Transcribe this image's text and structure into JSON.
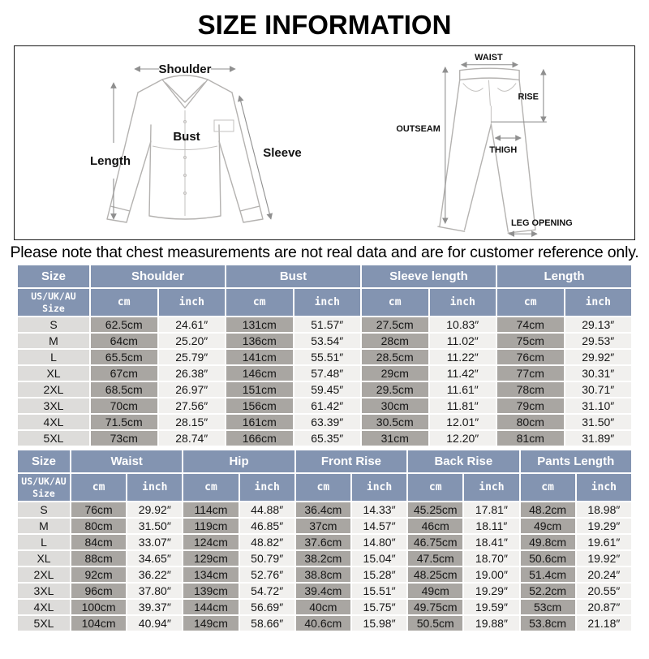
{
  "page": {
    "title": "SIZE INFORMATION",
    "note": "Please note that chest measurements are not real data and are for customer reference only."
  },
  "colors": {
    "header_bg": "#8394B1",
    "header_text": "#FFFFFF",
    "cm_cell_bg": "#A9A6A2",
    "inch_cell_bg": "#F1F0EE",
    "size_cell_bg": "#DDDCDA",
    "diagram_line": "#B4B2B0"
  },
  "diagrams": {
    "shirt": {
      "labels": {
        "shoulder": "Shoulder",
        "length": "Length",
        "bust": "Bust",
        "sleeve": "Sleeve"
      }
    },
    "pants": {
      "labels": {
        "waist": "WAIST",
        "rise": "RISE",
        "outseam": "OUTSEAM",
        "thigh": "THIGH",
        "leg_opening": "LEG OPENING"
      }
    }
  },
  "tables": [
    {
      "id": "tops",
      "size_header": "Size",
      "sub_size_header": "US/UK/AU\nSize",
      "groups": [
        "Shoulder",
        "Bust",
        "Sleeve length",
        "Length"
      ],
      "unit_headers": [
        "cm",
        "inch"
      ],
      "rows": [
        {
          "size": "S",
          "values": [
            "62.5cm",
            "24.61″",
            "131cm",
            "51.57″",
            "27.5cm",
            "10.83″",
            "74cm",
            "29.13″"
          ]
        },
        {
          "size": "M",
          "values": [
            "64cm",
            "25.20″",
            "136cm",
            "53.54″",
            "28cm",
            "11.02″",
            "75cm",
            "29.53″"
          ]
        },
        {
          "size": "L",
          "values": [
            "65.5cm",
            "25.79″",
            "141cm",
            "55.51″",
            "28.5cm",
            "11.22″",
            "76cm",
            "29.92″"
          ]
        },
        {
          "size": "XL",
          "values": [
            "67cm",
            "26.38″",
            "146cm",
            "57.48″",
            "29cm",
            "11.42″",
            "77cm",
            "30.31″"
          ]
        },
        {
          "size": "2XL",
          "values": [
            "68.5cm",
            "26.97″",
            "151cm",
            "59.45″",
            "29.5cm",
            "11.61″",
            "78cm",
            "30.71″"
          ]
        },
        {
          "size": "3XL",
          "values": [
            "70cm",
            "27.56″",
            "156cm",
            "61.42″",
            "30cm",
            "11.81″",
            "79cm",
            "31.10″"
          ]
        },
        {
          "size": "4XL",
          "values": [
            "71.5cm",
            "28.15″",
            "161cm",
            "63.39″",
            "30.5cm",
            "12.01″",
            "80cm",
            "31.50″"
          ]
        },
        {
          "size": "5XL",
          "values": [
            "73cm",
            "28.74″",
            "166cm",
            "65.35″",
            "31cm",
            "12.20″",
            "81cm",
            "31.89″"
          ]
        }
      ]
    },
    {
      "id": "pants",
      "size_header": "Size",
      "sub_size_header": "US/UK/AU\nSize",
      "groups": [
        "Waist",
        "Hip",
        "Front Rise",
        "Back Rise",
        "Pants Length"
      ],
      "unit_headers": [
        "cm",
        "inch"
      ],
      "rows": [
        {
          "size": "S",
          "values": [
            "76cm",
            "29.92″",
            "114cm",
            "44.88″",
            "36.4cm",
            "14.33″",
            "45.25cm",
            "17.81″",
            "48.2cm",
            "18.98″"
          ]
        },
        {
          "size": "M",
          "values": [
            "80cm",
            "31.50″",
            "119cm",
            "46.85″",
            "37cm",
            "14.57″",
            "46cm",
            "18.11″",
            "49cm",
            "19.29″"
          ]
        },
        {
          "size": "L",
          "values": [
            "84cm",
            "33.07″",
            "124cm",
            "48.82″",
            "37.6cm",
            "14.80″",
            "46.75cm",
            "18.41″",
            "49.8cm",
            "19.61″"
          ]
        },
        {
          "size": "XL",
          "values": [
            "88cm",
            "34.65″",
            "129cm",
            "50.79″",
            "38.2cm",
            "15.04″",
            "47.5cm",
            "18.70″",
            "50.6cm",
            "19.92″"
          ]
        },
        {
          "size": "2XL",
          "values": [
            "92cm",
            "36.22″",
            "134cm",
            "52.76″",
            "38.8cm",
            "15.28″",
            "48.25cm",
            "19.00″",
            "51.4cm",
            "20.24″"
          ]
        },
        {
          "size": "3XL",
          "values": [
            "96cm",
            "37.80″",
            "139cm",
            "54.72″",
            "39.4cm",
            "15.51″",
            "49cm",
            "19.29″",
            "52.2cm",
            "20.55″"
          ]
        },
        {
          "size": "4XL",
          "values": [
            "100cm",
            "39.37″",
            "144cm",
            "56.69″",
            "40cm",
            "15.75″",
            "49.75cm",
            "19.59″",
            "53cm",
            "20.87″"
          ]
        },
        {
          "size": "5XL",
          "values": [
            "104cm",
            "40.94″",
            "149cm",
            "58.66″",
            "40.6cm",
            "15.98″",
            "50.5cm",
            "19.88″",
            "53.8cm",
            "21.18″"
          ]
        }
      ]
    }
  ]
}
